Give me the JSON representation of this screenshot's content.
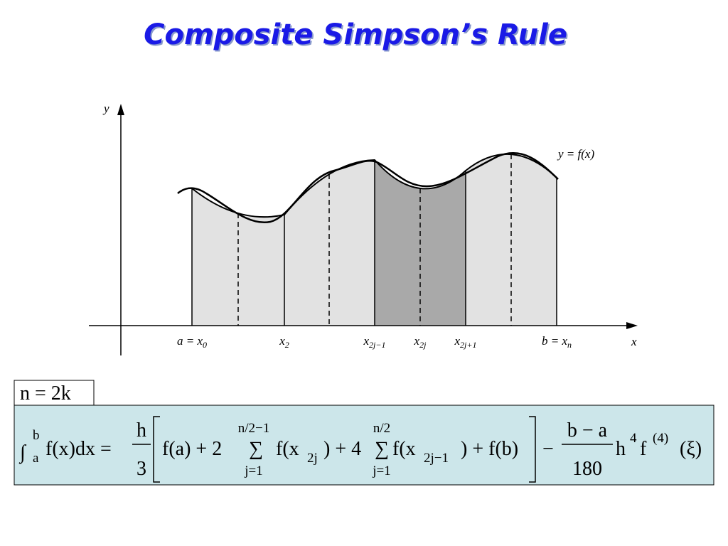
{
  "title": "Composite Simpson’s Rule",
  "figure": {
    "y_axis_label": "y",
    "x_axis_label": "x",
    "curve_label": "y = f(x)",
    "x_labels": [
      {
        "text": "a = x",
        "sub": "0"
      },
      {
        "text": "x",
        "sub": "2"
      },
      {
        "text": "x",
        "sub": "2j−1"
      },
      {
        "text": "x",
        "sub": "2j"
      },
      {
        "text": "x",
        "sub": "2j+1"
      },
      {
        "text": "b = x",
        "sub": "n"
      }
    ]
  },
  "condition": "n = 2k",
  "formula": {
    "integral": "∫",
    "upper": "b",
    "lower": "a",
    "integrand": "f(x)dx =",
    "coef_num": "h",
    "coef_den": "3",
    "term1": "f(a) + 2",
    "sum1_top": "n/2−1",
    "sum1_sigma": "∑",
    "sum1_bottom": "j=1",
    "term2": "f(x",
    "term2_sub": "2j",
    "term3": ") + 4",
    "sum2_top": "n/2",
    "sum2_sigma": "∑",
    "sum2_bottom": "j=1",
    "term4": "f(x",
    "term4_sub": "2j−1",
    "term5": ") + f(b)",
    "minus": "−",
    "err_num": "b − a",
    "err_den": "180",
    "err_h": "h",
    "err_h_sup": "4",
    "err_f": "f",
    "err_f_sup": "(4)",
    "err_arg": "(ξ)"
  }
}
